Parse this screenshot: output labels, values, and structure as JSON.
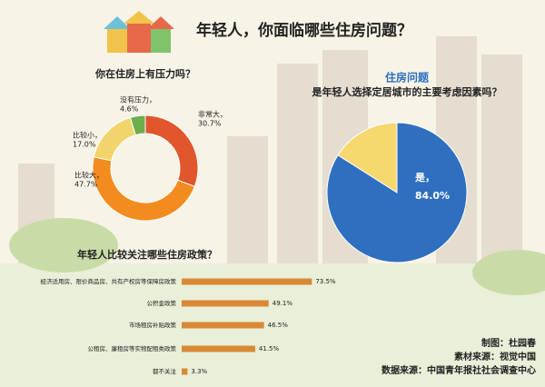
{
  "title": "年轻人，你面临哪些住房问题？",
  "chart_data": [
    {
      "type": "donut",
      "title": "你在住房上有压力吗？",
      "categories": [
        "非常大，",
        "比较大，",
        "比较小，",
        "没有压力，"
      ],
      "values": [
        30.7,
        47.7,
        17.0,
        4.6
      ],
      "value_labels": [
        "30.7%",
        "47.7%",
        "17.0%",
        "4.6%"
      ],
      "colors": [
        "#e2562c",
        "#f28c1e",
        "#f2d46c",
        "#6cae4a"
      ]
    },
    {
      "type": "pie",
      "title": "住房问题",
      "subtitle": "是年轻人选择定居城市的主要考虑因素吗？",
      "categories": [
        "是，",
        null
      ],
      "values": [
        84.0,
        16.0
      ],
      "value_labels": [
        "84.0%",
        null
      ],
      "colors": [
        "#2f6fc0",
        "#f6d86f"
      ]
    },
    {
      "type": "bar",
      "title": "年轻人比较关注哪些住房政策？",
      "categories": [
        "经济适用房、限价商品房、共有产权房等保障房政策",
        "公积金政策",
        "市场租房补贴政策",
        "公租房、廉租房等实物配租类政策",
        "都不关注"
      ],
      "values": [
        73.5,
        49.1,
        46.5,
        41.5,
        3.3
      ],
      "value_labels": [
        "73.5%",
        "49.1%",
        "46.5%",
        "41.5%",
        "3.3%"
      ],
      "color": "#d98936"
    }
  ],
  "credits": [
    "制图：杜园春",
    "素材来源：视觉中国",
    "数据来源：中国青年报社社会调查中心"
  ]
}
